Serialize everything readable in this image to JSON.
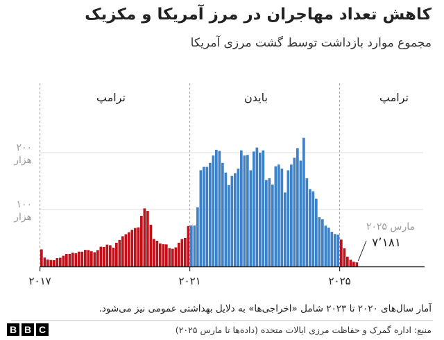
{
  "header": {
    "title": "کاهش تعداد مهاجران در مرز آمریکا و مکزیک",
    "subtitle": "مجموع موارد بازداشت توسط گشت مرزی آمریکا"
  },
  "chart_data": {
    "type": "bar",
    "y_ticks": [
      {
        "value": 100000,
        "label": "۱۰۰",
        "unit": "هزار"
      },
      {
        "value": 200000,
        "label": "۲۰۰",
        "unit": "هزار"
      }
    ],
    "x_ticks": [
      {
        "x": 0,
        "label": "۲۰۱۷"
      },
      {
        "x": 48,
        "label": "۲۰۲۱"
      },
      {
        "x": 96,
        "label": "۲۰۲۵"
      }
    ],
    "periods": [
      {
        "name": "ترامپ",
        "start": 0,
        "end": 48
      },
      {
        "name": "بایدن",
        "start": 48,
        "end": 96
      },
      {
        "name": "ترامپ",
        "start": 96,
        "end": 111
      }
    ],
    "period_colors": [
      "#c0111a",
      "#3d81c9",
      "#c0111a"
    ],
    "series_values": [
      30000,
      15600,
      12000,
      11300,
      11100,
      14600,
      15300,
      18800,
      21900,
      22100,
      24200,
      23100,
      26000,
      25900,
      29100,
      28800,
      26600,
      25000,
      28800,
      34600,
      34100,
      38300,
      37300,
      33000,
      41600,
      46500,
      53100,
      56600,
      60100,
      64500,
      67500,
      68700,
      89000,
      102000,
      97500,
      73300,
      48300,
      45200,
      40500,
      39100,
      38700,
      32400,
      31000,
      33500,
      41700,
      48200,
      50100,
      71000,
      72100,
      72000,
      104000,
      169000,
      175000,
      175000,
      182000,
      195000,
      205000,
      203000,
      182000,
      165000,
      143000,
      159000,
      164000,
      172000,
      204000,
      195000,
      196000,
      169000,
      202000,
      209000,
      200000,
      204000,
      152000,
      155000,
      144000,
      176000,
      179000,
      172000,
      130000,
      169000,
      179000,
      191000,
      208000,
      186000,
      226000,
      155000,
      136000,
      132000,
      119000,
      86400,
      82800,
      71800,
      68100,
      60900,
      57000,
      55700,
      47200,
      32000,
      17300,
      11700,
      8300,
      7181
    ],
    "annotation": {
      "label": "مارس ۲۰۲۵",
      "value_label": "۷٬۱۸۱"
    },
    "ylim": [
      0,
      250000
    ],
    "grid": true
  },
  "footer": {
    "note": "آمار سال‌های ۲۰۲۰ تا ۲۰۲۳ شامل «اخراجی‌ها» به دلایل بهداشتی عمومی نیز می‌شود.",
    "source": "منبع: اداره گمرک و حفاظت مرزی ایالات متحده (داده‌ها تا مارس ۲۰۲۵)",
    "brand": [
      "B",
      "B",
      "C"
    ]
  }
}
